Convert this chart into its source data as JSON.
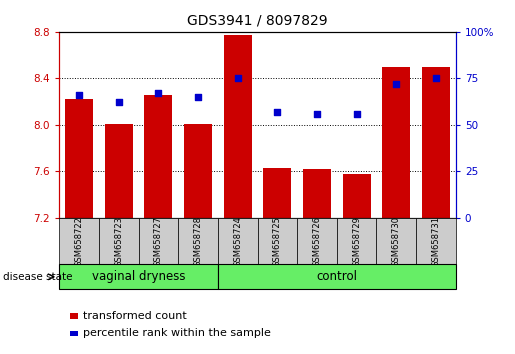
{
  "title": "GDS3941 / 8097829",
  "samples": [
    "GSM658722",
    "GSM658723",
    "GSM658727",
    "GSM658728",
    "GSM658724",
    "GSM658725",
    "GSM658726",
    "GSM658729",
    "GSM658730",
    "GSM658731"
  ],
  "bar_values": [
    8.22,
    8.01,
    8.26,
    8.01,
    8.77,
    7.63,
    7.62,
    7.58,
    8.5,
    8.5
  ],
  "percentile_values": [
    66,
    62,
    67,
    65,
    75,
    57,
    56,
    56,
    72,
    75
  ],
  "ylim_left": [
    7.2,
    8.8
  ],
  "ylim_right": [
    0,
    100
  ],
  "yticks_left": [
    7.2,
    7.6,
    8.0,
    8.4,
    8.8
  ],
  "yticks_right": [
    0,
    25,
    50,
    75,
    100
  ],
  "bar_color": "#cc0000",
  "dot_color": "#0000cc",
  "bar_width": 0.7,
  "group1_label": "vaginal dryness",
  "group2_label": "control",
  "group1_count": 4,
  "group2_count": 6,
  "disease_state_label": "disease state",
  "legend_bar_label": "transformed count",
  "legend_dot_label": "percentile rank within the sample",
  "group_bg_color": "#66ee66",
  "tick_label_bg": "#cccccc",
  "right_axis_color": "#0000cc",
  "left_axis_color": "#cc0000",
  "grid_yticks": [
    7.6,
    8.0,
    8.4
  ]
}
